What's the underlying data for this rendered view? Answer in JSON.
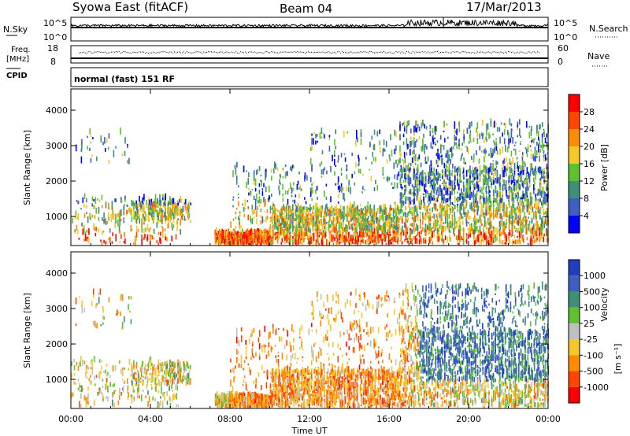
{
  "header": {
    "title": "Syowa East (fitACF)",
    "beam": "Beam 04",
    "date": "17/Mar/2013",
    "mode": "normal (fast) 151 RF"
  },
  "top_panels": {
    "nsky": {
      "left_label": "N.Sky",
      "right_label": "N.Search",
      "left_ticks": [
        "10^5",
        "10^0"
      ],
      "right_ticks": [
        "10^5",
        "10^0"
      ]
    },
    "freq": {
      "left_label_1": "Freq.",
      "left_label_2": "[MHz]",
      "right_label": "Nave",
      "left_ticks": [
        "18",
        "8"
      ],
      "right_ticks": [
        "60",
        "0"
      ]
    },
    "cpid_label": "CPID"
  },
  "chart_data": [
    {
      "type": "heatmap",
      "name": "power-panel",
      "ylabel": "Slant Range [km]",
      "ylim": [
        180,
        4600
      ],
      "y_ticks": [
        1000,
        2000,
        3000,
        4000
      ],
      "colorbar": {
        "label": "Power [dB]",
        "ticks": [
          "4",
          "8",
          "12",
          "16",
          "20",
          "24",
          "28"
        ],
        "colors": [
          "#0000ff",
          "#3f5fbf",
          "#3d8f77",
          "#5fc12f",
          "#f5c82a",
          "#ff8c00",
          "#ff4500",
          "#ff0000"
        ]
      }
    },
    {
      "type": "heatmap",
      "name": "velocity-panel",
      "ylabel": "Slant Range [km]",
      "ylim": [
        180,
        4600
      ],
      "y_ticks": [
        1000,
        2000,
        3000,
        4000
      ],
      "colorbar": {
        "label": "Velocity",
        "unit_label": "[m s⁻¹]",
        "ticks": [
          "1000",
          "500",
          "100",
          "25",
          "-25",
          "-100",
          "-500",
          "-1000"
        ],
        "colors": [
          "#1f3fbf",
          "#3f5fbf",
          "#3d8f77",
          "#5fc12f",
          "#bfbfbf",
          "#f5c82a",
          "#ff8c00",
          "#ff4500",
          "#ff0000"
        ]
      }
    }
  ],
  "x_axis": {
    "xlabel": "Time UT",
    "xlim": [
      0,
      24
    ],
    "ticks": [
      "00:00",
      "04:00",
      "08:00",
      "12:00",
      "16:00",
      "20:00",
      "00:00"
    ]
  }
}
